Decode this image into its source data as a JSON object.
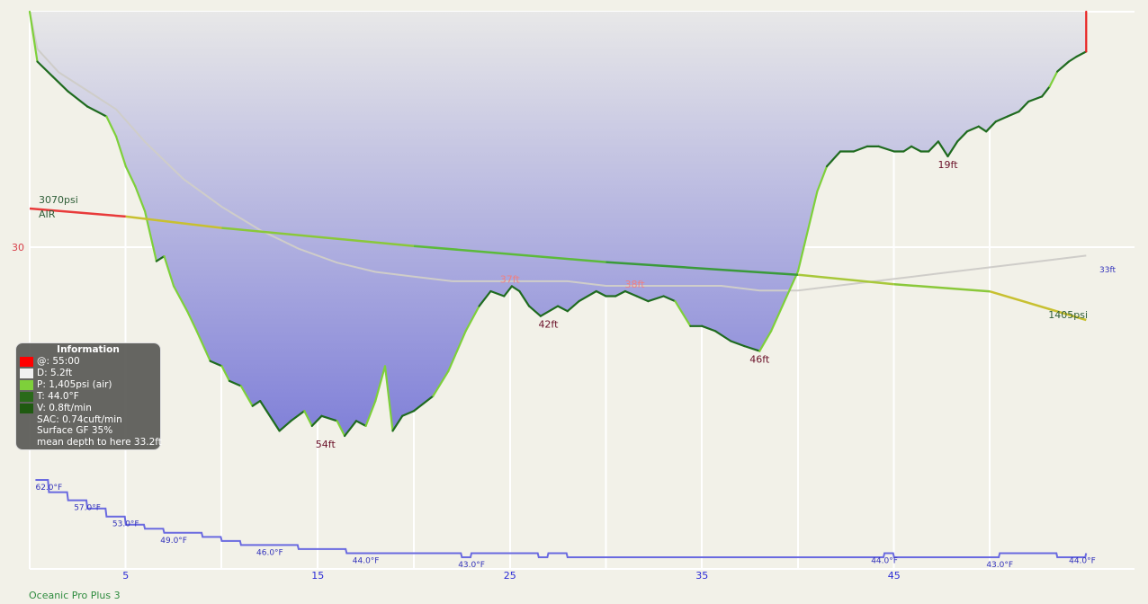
{
  "chart_data": {
    "type": "line",
    "time_axis": {
      "range": [
        0,
        55.0
      ],
      "ticks": [
        5,
        15,
        25,
        35,
        45
      ]
    },
    "depth_axis": {
      "range": [
        0,
        58
      ],
      "ticks": [
        30
      ],
      "inverted": true
    },
    "grid": true,
    "depth_profile": {
      "unit": "ft",
      "points": [
        [
          0.0,
          0
        ],
        [
          0.4,
          10
        ],
        [
          1.2,
          13
        ],
        [
          2.0,
          16
        ],
        [
          3.0,
          19
        ],
        [
          4.0,
          21
        ],
        [
          4.5,
          25
        ],
        [
          5.0,
          31
        ],
        [
          5.5,
          35
        ],
        [
          6.0,
          40
        ],
        [
          6.6,
          50
        ],
        [
          7.0,
          49
        ],
        [
          7.5,
          55
        ],
        [
          8.2,
          60
        ],
        [
          8.7,
          64
        ],
        [
          9.4,
          70
        ],
        [
          10.0,
          71
        ],
        [
          10.4,
          74
        ],
        [
          11.0,
          75
        ],
        [
          11.6,
          79
        ],
        [
          12.0,
          78
        ],
        [
          13.0,
          84
        ],
        [
          13.6,
          82
        ],
        [
          14.3,
          80
        ],
        [
          14.7,
          83
        ],
        [
          15.2,
          81
        ],
        [
          16.0,
          82
        ],
        [
          16.4,
          85
        ],
        [
          17.0,
          82
        ],
        [
          17.5,
          83
        ],
        [
          18.0,
          78
        ],
        [
          18.5,
          71
        ],
        [
          18.9,
          84
        ],
        [
          19.4,
          81
        ],
        [
          20.0,
          80
        ],
        [
          21.0,
          77
        ],
        [
          21.8,
          72
        ],
        [
          22.7,
          64
        ],
        [
          23.4,
          59
        ],
        [
          24.0,
          56
        ],
        [
          24.7,
          57
        ],
        [
          25.1,
          55
        ],
        [
          25.5,
          56
        ],
        [
          26.0,
          59
        ],
        [
          26.6,
          61
        ],
        [
          27.5,
          59
        ],
        [
          28.0,
          60
        ],
        [
          28.6,
          58
        ],
        [
          29.5,
          56
        ],
        [
          30.0,
          57
        ],
        [
          30.5,
          57
        ],
        [
          31.0,
          56
        ],
        [
          31.6,
          57
        ],
        [
          32.2,
          58
        ],
        [
          33.0,
          57
        ],
        [
          33.6,
          58
        ],
        [
          34.4,
          63
        ],
        [
          35.0,
          63
        ],
        [
          35.7,
          64
        ],
        [
          36.5,
          66
        ],
        [
          37.2,
          67
        ],
        [
          38.0,
          68
        ],
        [
          38.6,
          64
        ],
        [
          40.0,
          52
        ],
        [
          41.0,
          36
        ],
        [
          41.5,
          31
        ],
        [
          42.2,
          28
        ],
        [
          42.9,
          28
        ],
        [
          43.6,
          27
        ],
        [
          44.2,
          27
        ],
        [
          45.0,
          28
        ],
        [
          45.5,
          28
        ],
        [
          45.9,
          27
        ],
        [
          46.4,
          28
        ],
        [
          46.8,
          28
        ],
        [
          47.3,
          26
        ],
        [
          47.8,
          29
        ],
        [
          48.3,
          26
        ],
        [
          48.8,
          24
        ],
        [
          49.4,
          23
        ],
        [
          49.8,
          24
        ],
        [
          50.3,
          22
        ],
        [
          50.9,
          21
        ],
        [
          51.5,
          20
        ],
        [
          52.0,
          18
        ],
        [
          52.7,
          17
        ],
        [
          53.1,
          15
        ],
        [
          53.5,
          12
        ],
        [
          54.1,
          10
        ],
        [
          54.5,
          9
        ],
        [
          55.0,
          8
        ],
        [
          55.0,
          0
        ]
      ],
      "labels": [
        {
          "text": "54ft",
          "t": 15.4,
          "depth": 85,
          "style": "below"
        },
        {
          "text": "37ft",
          "t": 25.0,
          "depth": 55,
          "style": "above"
        },
        {
          "text": "42ft",
          "t": 27.0,
          "depth": 61,
          "style": "below"
        },
        {
          "text": "38ft",
          "t": 31.5,
          "depth": 56,
          "style": "above"
        },
        {
          "text": "46ft",
          "t": 38.0,
          "depth": 68,
          "style": "below"
        },
        {
          "text": "19ft",
          "t": 47.8,
          "depth": 29,
          "style": "below"
        }
      ]
    },
    "tank_pressure": {
      "unit": "psi",
      "gas": "AIR",
      "start_label": "3070psi",
      "end_label": "1405psi",
      "points": [
        [
          0.0,
          3070
        ],
        [
          5.0,
          2950
        ],
        [
          10.0,
          2780
        ],
        [
          20.0,
          2510
        ],
        [
          30.0,
          2270
        ],
        [
          40.0,
          2080
        ],
        [
          45.0,
          1940
        ],
        [
          50.0,
          1830
        ],
        [
          55.0,
          1405
        ]
      ]
    },
    "ambient_overlay": {
      "end_label": "33ft",
      "points": [
        [
          0.0,
          0
        ],
        [
          0.4,
          8
        ],
        [
          1.5,
          13
        ],
        [
          3.0,
          17
        ],
        [
          4.5,
          21
        ],
        [
          6.0,
          28
        ],
        [
          8.0,
          36
        ],
        [
          10.0,
          42
        ],
        [
          12.0,
          47
        ],
        [
          14.0,
          51
        ],
        [
          16.0,
          54
        ],
        [
          18.0,
          56
        ],
        [
          20.0,
          57
        ],
        [
          22.0,
          58
        ],
        [
          24.0,
          58
        ],
        [
          26.0,
          58
        ],
        [
          28.0,
          58
        ],
        [
          30.0,
          59
        ],
        [
          32.0,
          59
        ],
        [
          34.0,
          59
        ],
        [
          36.0,
          59
        ],
        [
          38.0,
          60
        ],
        [
          40.0,
          60
        ],
        [
          42.0,
          59
        ],
        [
          44.0,
          58
        ],
        [
          46.0,
          57
        ],
        [
          48.0,
          56
        ],
        [
          50.0,
          55
        ],
        [
          52.0,
          54
        ],
        [
          54.0,
          53
        ],
        [
          55.0,
          52.5
        ]
      ]
    },
    "temperature": {
      "unit": "°F",
      "points": [
        [
          0.3,
          62
        ],
        [
          1.0,
          59
        ],
        [
          2.0,
          57
        ],
        [
          3.0,
          55
        ],
        [
          4.0,
          53
        ],
        [
          5.0,
          51
        ],
        [
          6.0,
          50
        ],
        [
          7.0,
          49
        ],
        [
          9.0,
          48
        ],
        [
          10.0,
          47
        ],
        [
          11.0,
          46
        ],
        [
          13.0,
          46
        ],
        [
          14.0,
          45
        ],
        [
          16.0,
          45
        ],
        [
          16.5,
          44
        ],
        [
          22.0,
          44
        ],
        [
          22.5,
          43
        ],
        [
          23.0,
          44
        ],
        [
          26.0,
          44
        ],
        [
          26.5,
          43
        ],
        [
          27.0,
          44
        ],
        [
          28.0,
          43
        ],
        [
          44.0,
          43
        ],
        [
          44.5,
          44
        ],
        [
          45.0,
          43
        ],
        [
          50.0,
          43
        ],
        [
          50.5,
          44
        ],
        [
          53.0,
          44
        ],
        [
          53.5,
          43
        ],
        [
          54.8,
          43
        ],
        [
          55.0,
          44
        ]
      ],
      "labels": [
        {
          "text": "62.0°F",
          "t": 1.0
        },
        {
          "text": "57.0°F",
          "t": 3.0
        },
        {
          "text": "53.0°F",
          "t": 5.0
        },
        {
          "text": "49.0°F",
          "t": 7.5
        },
        {
          "text": "46.0°F",
          "t": 12.5
        },
        {
          "text": "44.0°F",
          "t": 17.5
        },
        {
          "text": "43.0°F",
          "t": 23.0
        },
        {
          "text": "44.0°F",
          "t": 44.5
        },
        {
          "text": "43.0°F",
          "t": 50.5
        },
        {
          "text": "44.0°F",
          "t": 54.8
        }
      ]
    }
  },
  "info_box": {
    "title": "Information",
    "time": "@: 55:00",
    "depth": "D: 5.2ft",
    "pressure": "P: 1,405psi (air)",
    "temperature": "T: 44.0°F",
    "velocity": "V: 0.8ft/min",
    "sac": "SAC: 0.74cuft/min",
    "surface_gf": "Surface GF 35%",
    "mean_depth": "mean depth to here 33.2ft"
  },
  "dive_computer": "Oceanic Pro Plus 3"
}
